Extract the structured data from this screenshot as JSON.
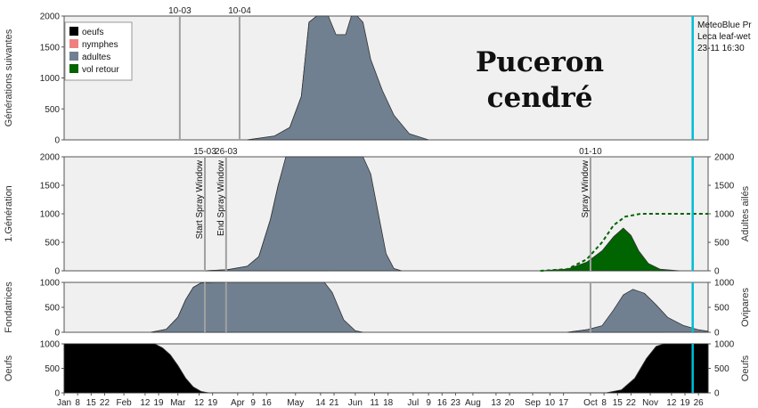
{
  "title_line1": "Puceron",
  "title_line2": "cendré",
  "source_lines": [
    "MeteoBlue Pr",
    "Leca leaf-wet",
    "23-11 16:30"
  ],
  "legend": [
    {
      "label": "oeufs",
      "color": "#000000"
    },
    {
      "label": "nymphes",
      "color": "#f08080"
    },
    {
      "label": "adultes",
      "color": "#708090"
    },
    {
      "label": "vol retour",
      "color": "#006400"
    }
  ],
  "colors": {
    "nymphes": "#f08080",
    "adultes": "#708090",
    "oeufs": "#000000",
    "vol_retour": "#006400",
    "plot_bg": "#f0f0f0",
    "marker_line": "#a0a0a0",
    "now_line": "#00bcd4"
  },
  "x_axis": {
    "labels": [
      "Jan",
      "8",
      "15",
      "22",
      "Feb",
      "12",
      "19",
      "Mar",
      "12",
      "19",
      "Apr",
      "9",
      "16",
      "May",
      "14",
      "21",
      "Jun",
      "11",
      "18",
      "Jul",
      "9",
      "16",
      "23",
      "Aug",
      "13",
      "20",
      "Sep",
      "10",
      "17",
      "Oct",
      "8",
      "15",
      "22",
      "Nov",
      "12",
      "19",
      "26"
    ],
    "label_days": [
      1,
      8,
      15,
      22,
      32,
      43,
      50,
      60,
      71,
      78,
      91,
      99,
      106,
      121,
      134,
      141,
      152,
      162,
      169,
      182,
      190,
      197,
      204,
      213,
      225,
      232,
      244,
      253,
      260,
      274,
      281,
      288,
      295,
      305,
      316,
      323,
      330
    ],
    "range_days": [
      1,
      335
    ]
  },
  "chart_data": [
    {
      "type": "area",
      "ylabel": "Générations suivantes",
      "ylim": [
        0,
        2000
      ],
      "yticks": [
        0,
        500,
        1000,
        1500,
        2000
      ],
      "markers": [
        {
          "day": 61,
          "label": "10-03"
        },
        {
          "day": 92,
          "label": "10-04"
        }
      ],
      "series": [
        {
          "name": "nymphes",
          "color": "#f08080",
          "points": [
            [
              96,
              0
            ],
            [
              110,
              60
            ],
            [
              118,
              200
            ],
            [
              124,
              700
            ],
            [
              128,
              1900
            ],
            [
              132,
              2500
            ],
            [
              138,
              2300
            ],
            [
              142,
              1000
            ],
            [
              145,
              700
            ],
            [
              150,
              1200
            ],
            [
              153,
              1600
            ],
            [
              156,
              1200
            ],
            [
              160,
              600
            ],
            [
              165,
              200
            ],
            [
              172,
              20
            ],
            [
              178,
              0
            ]
          ]
        },
        {
          "name": "adultes",
          "color": "#708090",
          "points": [
            [
              96,
              0
            ],
            [
              110,
              60
            ],
            [
              118,
              200
            ],
            [
              124,
              700
            ],
            [
              128,
              1900
            ],
            [
              132,
              2500
            ],
            [
              138,
              2400
            ],
            [
              142,
              1700
            ],
            [
              147,
              1700
            ],
            [
              150,
              2000
            ],
            [
              153,
              2100
            ],
            [
              156,
              1900
            ],
            [
              160,
              1300
            ],
            [
              166,
              800
            ],
            [
              172,
              400
            ],
            [
              180,
              100
            ],
            [
              190,
              0
            ]
          ]
        }
      ]
    },
    {
      "type": "area",
      "ylabel": "1.Génération",
      "ylabel_right": "Adultes ailés",
      "ylim": [
        0,
        2000
      ],
      "yticks": [
        0,
        500,
        1000,
        1500,
        2000
      ],
      "right_yticks": [
        0,
        500,
        1000,
        1500,
        2000
      ],
      "markers": [
        {
          "day": 74,
          "label": "15-03",
          "text": "Start Spray Window"
        },
        {
          "day": 85,
          "label": "26-03",
          "text": "End Spray Window"
        },
        {
          "day": 274,
          "label": "01-10",
          "text": "Spray Window"
        }
      ],
      "series": [
        {
          "name": "nymphes",
          "color": "#f08080",
          "points": [
            [
              74,
              0
            ],
            [
              86,
              20
            ],
            [
              96,
              80
            ],
            [
              102,
              250
            ],
            [
              108,
              900
            ],
            [
              112,
              1500
            ],
            [
              115,
              1850
            ],
            [
              118,
              1700
            ],
            [
              122,
              1100
            ],
            [
              126,
              500
            ],
            [
              130,
              150
            ],
            [
              134,
              20
            ],
            [
              138,
              0
            ]
          ]
        },
        {
          "name": "adultes",
          "color": "#708090",
          "points": [
            [
              74,
              0
            ],
            [
              86,
              20
            ],
            [
              96,
              80
            ],
            [
              102,
              250
            ],
            [
              108,
              900
            ],
            [
              112,
              1500
            ],
            [
              116,
              2000
            ],
            [
              130,
              2000
            ],
            [
              150,
              2000
            ],
            [
              156,
              2000
            ],
            [
              160,
              1700
            ],
            [
              164,
              1000
            ],
            [
              168,
              300
            ],
            [
              172,
              40
            ],
            [
              176,
              0
            ]
          ]
        },
        {
          "name": "vol retour",
          "color": "#006400",
          "points": [
            [
              248,
              0
            ],
            [
              262,
              30
            ],
            [
              272,
              150
            ],
            [
              280,
              350
            ],
            [
              286,
              600
            ],
            [
              291,
              750
            ],
            [
              295,
              620
            ],
            [
              299,
              350
            ],
            [
              304,
              130
            ],
            [
              310,
              30
            ],
            [
              320,
              0
            ]
          ]
        }
      ],
      "cumulative": {
        "color": "#006400",
        "points": [
          [
            248,
            0
          ],
          [
            262,
            30
          ],
          [
            272,
            200
          ],
          [
            280,
            500
          ],
          [
            286,
            800
          ],
          [
            292,
            950
          ],
          [
            300,
            1000
          ],
          [
            335,
            1000
          ]
        ]
      }
    },
    {
      "type": "area",
      "ylabel": "Fondatrices",
      "ylabel_right": "Ovipares",
      "ylim": [
        0,
        1000
      ],
      "yticks": [
        0,
        500,
        1000
      ],
      "right_yticks": [
        0,
        500,
        1000
      ],
      "markers": [
        {
          "day": 74
        },
        {
          "day": 85
        },
        {
          "day": 274
        }
      ],
      "series": [
        {
          "name": "nymphes",
          "color": "#f08080",
          "points": [
            [
              46,
              0
            ],
            [
              54,
              60
            ],
            [
              60,
              300
            ],
            [
              64,
              650
            ],
            [
              68,
              900
            ],
            [
              72,
              990
            ],
            [
              76,
              1000
            ],
            [
              80,
              950
            ],
            [
              82,
              600
            ],
            [
              84,
              250
            ],
            [
              86,
              80
            ],
            [
              88,
              0
            ]
          ]
        },
        {
          "name": "adultes",
          "color": "#708090",
          "points": [
            [
              46,
              0
            ],
            [
              54,
              60
            ],
            [
              60,
              300
            ],
            [
              64,
              650
            ],
            [
              68,
              900
            ],
            [
              72,
              990
            ],
            [
              80,
              1000
            ],
            [
              120,
              1000
            ],
            [
              136,
              1000
            ],
            [
              140,
              800
            ],
            [
              146,
              250
            ],
            [
              152,
              30
            ],
            [
              156,
              0
            ]
          ]
        },
        {
          "name": "nymphes",
          "color": "#f08080",
          "points": [
            [
              262,
              0
            ],
            [
              272,
              50
            ],
            [
              280,
              130
            ],
            [
              286,
              350
            ],
            [
              291,
              650
            ],
            [
              294,
              700
            ],
            [
              298,
              500
            ],
            [
              302,
              200
            ],
            [
              306,
              60
            ],
            [
              312,
              0
            ]
          ]
        },
        {
          "name": "adultes",
          "color": "#708090",
          "points": [
            [
              262,
              0
            ],
            [
              272,
              50
            ],
            [
              280,
              130
            ],
            [
              286,
              450
            ],
            [
              291,
              750
            ],
            [
              296,
              860
            ],
            [
              302,
              780
            ],
            [
              308,
              550
            ],
            [
              314,
              300
            ],
            [
              322,
              140
            ],
            [
              330,
              50
            ],
            [
              335,
              20
            ]
          ]
        }
      ]
    },
    {
      "type": "area",
      "ylabel": "Oeufs",
      "ylabel_right": "Oeufs",
      "ylim": [
        0,
        1000
      ],
      "yticks": [
        0,
        500,
        1000
      ],
      "right_yticks": [
        0,
        500,
        1000
      ],
      "series": [
        {
          "name": "oeufs",
          "color": "#000000",
          "points": [
            [
              1,
              1000
            ],
            [
              48,
              1000
            ],
            [
              52,
              920
            ],
            [
              56,
              780
            ],
            [
              60,
              560
            ],
            [
              64,
              300
            ],
            [
              68,
              120
            ],
            [
              72,
              30
            ],
            [
              76,
              0
            ],
            [
              282,
              0
            ],
            [
              290,
              60
            ],
            [
              297,
              300
            ],
            [
              303,
              700
            ],
            [
              308,
              950
            ],
            [
              312,
              1000
            ],
            [
              335,
              1000
            ]
          ]
        }
      ]
    }
  ],
  "now_day": 327
}
